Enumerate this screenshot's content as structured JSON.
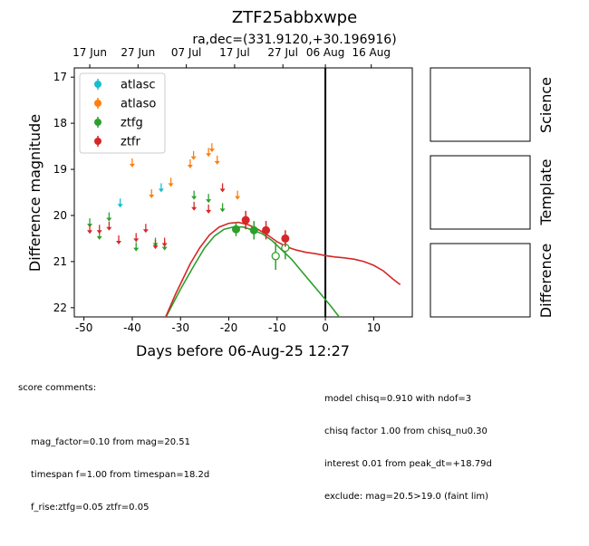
{
  "chart_data": {
    "type": "scatter",
    "title": "ZTF25abbxwpe",
    "subtitle": "ra,dec=(331.9120,+30.196916)",
    "xlabel": "Days before 06-Aug-25 12:27",
    "ylabel": "Difference magnitude",
    "xlim": [
      -52,
      18
    ],
    "ylim": [
      22.2,
      16.8
    ],
    "y_inverted": true,
    "x_ticks": [
      -50,
      -40,
      -30,
      -20,
      -10,
      0,
      10
    ],
    "y_ticks": [
      17,
      18,
      19,
      20,
      21,
      22
    ],
    "top_axis_labels": [
      {
        "x": -48.8,
        "label": "17 Jun"
      },
      {
        "x": -38.8,
        "label": "27 Jun"
      },
      {
        "x": -28.8,
        "label": "07 Jul"
      },
      {
        "x": -18.8,
        "label": "17 Jul"
      },
      {
        "x": -8.8,
        "label": "27 Jul"
      },
      {
        "x": 0,
        "label": "06 Aug"
      },
      {
        "x": 9.5,
        "label": "16 Aug"
      }
    ],
    "vline_x": 0,
    "legend_position": "top-left",
    "series": [
      {
        "name": "atlasc",
        "color": "#17becf",
        "limits": [
          [
            -42.5,
            19.75
          ],
          [
            -34,
            19.42
          ]
        ],
        "detections": [],
        "open_detections": []
      },
      {
        "name": "atlaso",
        "color": "#ff7f0e",
        "limits": [
          [
            -40,
            18.88
          ],
          [
            -36,
            19.55
          ],
          [
            -32,
            19.3
          ],
          [
            -28,
            18.9
          ],
          [
            -27.3,
            18.72
          ],
          [
            -24.2,
            18.65
          ],
          [
            -23.5,
            18.55
          ],
          [
            -22.4,
            18.82
          ],
          [
            -18.2,
            19.58
          ]
        ],
        "detections": [],
        "open_detections": []
      },
      {
        "name": "ztfg",
        "color": "#2ca02c",
        "limits": [
          [
            -48.8,
            20.18
          ],
          [
            -46.8,
            20.45
          ],
          [
            -44.8,
            20.05
          ],
          [
            -39.2,
            20.7
          ],
          [
            -35.2,
            20.6
          ],
          [
            -33.3,
            20.68
          ],
          [
            -27.2,
            19.58
          ],
          [
            -24.2,
            19.65
          ],
          [
            -21.3,
            19.85
          ]
        ],
        "detections": [
          [
            -18.5,
            20.3,
            0.15
          ],
          [
            -14.8,
            20.32,
            0.2
          ]
        ],
        "open_detections": [
          [
            -10.3,
            20.88,
            0.3
          ],
          [
            -8.3,
            20.7,
            0.25
          ]
        ]
      },
      {
        "name": "ztfr",
        "color": "#d62728",
        "limits": [
          [
            -48.8,
            20.32
          ],
          [
            -46.8,
            20.32
          ],
          [
            -44.8,
            20.25
          ],
          [
            -42.8,
            20.55
          ],
          [
            -39.2,
            20.5
          ],
          [
            -37.2,
            20.3
          ],
          [
            -35.2,
            20.65
          ],
          [
            -33.3,
            20.6
          ],
          [
            -27.2,
            19.82
          ],
          [
            -24.2,
            19.88
          ],
          [
            -21.3,
            19.42
          ]
        ],
        "detections": [
          [
            -16.5,
            20.1,
            0.2
          ],
          [
            -12.3,
            20.32,
            0.2
          ],
          [
            -8.3,
            20.5,
            0.18
          ]
        ],
        "open_detections": []
      }
    ],
    "model_curves": [
      {
        "band": "ztfg",
        "color": "#2ca02c",
        "points": [
          [
            -33.5,
            22.3
          ],
          [
            -30,
            21.6
          ],
          [
            -27,
            21.05
          ],
          [
            -25,
            20.7
          ],
          [
            -23,
            20.45
          ],
          [
            -21,
            20.3
          ],
          [
            -19,
            20.25
          ],
          [
            -17,
            20.25
          ],
          [
            -15,
            20.32
          ],
          [
            -13,
            20.4
          ],
          [
            -11,
            20.55
          ],
          [
            -9,
            20.75
          ],
          [
            -7,
            20.95
          ],
          [
            -5,
            21.2
          ],
          [
            -3,
            21.45
          ],
          [
            -1,
            21.7
          ],
          [
            1,
            21.95
          ],
          [
            3,
            22.22
          ]
        ]
      },
      {
        "band": "ztfr",
        "color": "#d62728",
        "points": [
          [
            -33.5,
            22.3
          ],
          [
            -31,
            21.7
          ],
          [
            -28,
            21.05
          ],
          [
            -26,
            20.7
          ],
          [
            -24,
            20.42
          ],
          [
            -22,
            20.25
          ],
          [
            -20,
            20.17
          ],
          [
            -18,
            20.15
          ],
          [
            -16,
            20.2
          ],
          [
            -14,
            20.3
          ],
          [
            -12,
            20.42
          ],
          [
            -10,
            20.57
          ],
          [
            -8,
            20.68
          ],
          [
            -6,
            20.75
          ],
          [
            -4,
            20.8
          ],
          [
            -2,
            20.83
          ],
          [
            0,
            20.87
          ],
          [
            2,
            20.9
          ],
          [
            4,
            20.92
          ],
          [
            6,
            20.95
          ],
          [
            8,
            21.0
          ],
          [
            10,
            21.08
          ],
          [
            12,
            21.2
          ],
          [
            14,
            21.38
          ],
          [
            15.5,
            21.5
          ]
        ]
      }
    ]
  },
  "panels": {
    "science": "Science",
    "template": "Template",
    "difference": "Difference"
  },
  "comments_left": {
    "heading": "score comments:",
    "lines": [
      "mag_factor=0.10 from mag=20.51",
      "timespan f=1.00 from timespan=18.2d",
      "f_rise:ztfg=0.05 ztfr=0.05"
    ]
  },
  "comments_right": {
    "lines": [
      "model chisq=0.910 with ndof=3",
      "chisq factor 1.00 from chisq_nu0.30",
      "interest 0.01 from peak_dt=+18.79d",
      "exclude: mag=20.5>19.0 (faint lim)"
    ]
  }
}
